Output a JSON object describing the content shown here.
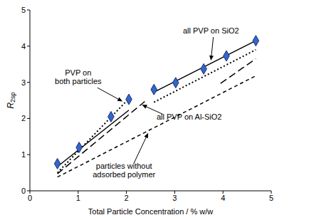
{
  "chart_data": {
    "type": "scatter",
    "x_label": "Total Particle Concentration / % w/w",
    "y_label": "R2sp",
    "xlim": [
      0,
      5
    ],
    "ylim": [
      0,
      5
    ],
    "xticks": [
      0,
      1,
      2,
      3,
      4,
      5
    ],
    "yticks": [
      0,
      1,
      2,
      3,
      4,
      5
    ],
    "grid": false,
    "series": [
      {
        "type": "scatter",
        "marker": "diamond",
        "color": "#3366cc",
        "x": [
          0.57,
          1.02,
          1.68,
          2.05,
          2.57,
          3.02,
          3.6,
          4.07,
          4.68
        ],
        "values": [
          0.75,
          1.2,
          2.05,
          2.53,
          2.8,
          2.99,
          3.37,
          3.73,
          4.15
        ]
      },
      {
        "name": "all PVP on SiO2",
        "type": "line",
        "line_style": "solid",
        "color": "#000000",
        "segments": [
          {
            "x": [
              0.57,
              2.05
            ],
            "values": [
              0.67,
              2.23
            ]
          },
          {
            "x": [
              2.57,
              4.68
            ],
            "values": [
              2.73,
              4.15
            ]
          }
        ]
      },
      {
        "name": "PVP on\nboth particles",
        "type": "line",
        "line_style": "dotted",
        "color": "#000000",
        "segments": [
          {
            "x": [
              0.57,
              2.05
            ],
            "values": [
              0.5,
              2.55
            ]
          },
          {
            "x": [
              2.57,
              4.68
            ],
            "values": [
              2.45,
              3.9
            ]
          }
        ]
      },
      {
        "name": "all PVP on Al-SiO2",
        "type": "line",
        "line_style": "long_dashed",
        "color": "#000000",
        "segments": [
          {
            "x": [
              0.57,
              2.38
            ],
            "values": [
              0.47,
              2.47
            ]
          },
          {
            "x": [
              3.95,
              4.68
            ],
            "values": [
              2.97,
              3.65
            ]
          }
        ]
      },
      {
        "name": "particles without\nadsorbed polymer",
        "type": "line",
        "line_style": "dashed",
        "color": "#000000",
        "segments": [
          {
            "x": [
              0.57,
              4.68
            ],
            "values": [
              0.38,
              3.18
            ]
          }
        ]
      }
    ]
  }
}
